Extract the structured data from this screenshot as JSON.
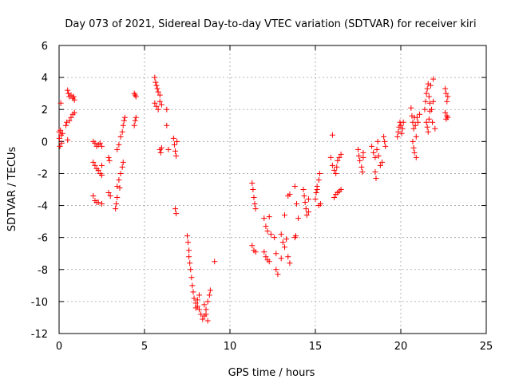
{
  "chart_data": {
    "type": "scatter",
    "title": "Day 073 of 2021, Sidereal Day-to-day VTEC variation (SDTVAR) for receiver kiri",
    "xlabel": "GPS time / hours",
    "ylabel": "SDTVAR / TECUs",
    "xlim": [
      0,
      25
    ],
    "ylim": [
      -12,
      6
    ],
    "x_ticks": [
      0,
      5,
      10,
      15,
      20,
      25
    ],
    "y_ticks": [
      -12,
      -10,
      -8,
      -6,
      -4,
      -2,
      0,
      2,
      4,
      6
    ],
    "grid": true,
    "marker": "plus",
    "colors": {
      "marker": "#ff0000"
    },
    "series": [
      {
        "values": [
          [
            0.0,
            0.6
          ],
          [
            0.02,
            0.2
          ],
          [
            0.05,
            -0.3
          ],
          [
            0.08,
            0.7
          ],
          [
            0.1,
            2.4
          ],
          [
            0.12,
            0.4
          ],
          [
            0.15,
            -0.1
          ],
          [
            0.2,
            0.5
          ],
          [
            0.4,
            1.0
          ],
          [
            0.45,
            1.2
          ],
          [
            0.5,
            0.1
          ],
          [
            0.5,
            3.2
          ],
          [
            0.55,
            3.0
          ],
          [
            0.6,
            2.8
          ],
          [
            0.6,
            1.3
          ],
          [
            0.7,
            1.5
          ],
          [
            0.7,
            2.9
          ],
          [
            0.8,
            1.7
          ],
          [
            0.8,
            2.7
          ],
          [
            0.85,
            2.8
          ],
          [
            0.9,
            1.8
          ],
          [
            0.9,
            2.6
          ],
          [
            2.0,
            0.0
          ],
          [
            2.1,
            -0.1
          ],
          [
            2.2,
            -0.3
          ],
          [
            2.3,
            -0.2
          ],
          [
            2.4,
            -0.1
          ],
          [
            2.5,
            -0.3
          ],
          [
            2.0,
            -1.3
          ],
          [
            2.1,
            -1.5
          ],
          [
            2.2,
            -1.7
          ],
          [
            2.3,
            -1.8
          ],
          [
            2.4,
            -2.0
          ],
          [
            2.5,
            -2.1
          ],
          [
            2.0,
            -3.4
          ],
          [
            2.1,
            -3.7
          ],
          [
            2.2,
            -3.8
          ],
          [
            2.3,
            -3.8
          ],
          [
            2.5,
            -3.9
          ],
          [
            2.5,
            -1.5
          ],
          [
            2.9,
            -1.0
          ],
          [
            2.95,
            -1.2
          ],
          [
            2.9,
            -3.2
          ],
          [
            3.0,
            -3.4
          ],
          [
            3.3,
            -4.2
          ],
          [
            3.35,
            -3.9
          ],
          [
            3.4,
            -3.5
          ],
          [
            3.4,
            -2.8
          ],
          [
            3.5,
            -2.4
          ],
          [
            3.55,
            -2.9
          ],
          [
            3.6,
            -2.0
          ],
          [
            3.7,
            -1.6
          ],
          [
            3.75,
            -1.3
          ],
          [
            3.4,
            -0.5
          ],
          [
            3.5,
            -0.2
          ],
          [
            3.6,
            0.3
          ],
          [
            3.7,
            0.6
          ],
          [
            3.75,
            1.0
          ],
          [
            3.8,
            1.3
          ],
          [
            3.85,
            1.5
          ],
          [
            4.4,
            1.0
          ],
          [
            4.45,
            1.3
          ],
          [
            4.5,
            1.5
          ],
          [
            4.4,
            3.0
          ],
          [
            4.45,
            2.9
          ],
          [
            4.5,
            2.8
          ],
          [
            5.6,
            4.0
          ],
          [
            5.65,
            3.7
          ],
          [
            5.7,
            3.5
          ],
          [
            5.75,
            3.3
          ],
          [
            5.8,
            3.1
          ],
          [
            5.9,
            2.9
          ],
          [
            5.6,
            2.4
          ],
          [
            5.7,
            2.2
          ],
          [
            5.8,
            2.0
          ],
          [
            5.9,
            2.5
          ],
          [
            6.0,
            2.3
          ],
          [
            5.9,
            -0.5
          ],
          [
            5.95,
            -0.7
          ],
          [
            6.0,
            -0.4
          ],
          [
            6.3,
            2.0
          ],
          [
            6.3,
            1.0
          ],
          [
            6.4,
            -0.5
          ],
          [
            6.7,
            0.2
          ],
          [
            6.75,
            -0.2
          ],
          [
            6.8,
            -0.6
          ],
          [
            6.85,
            -0.9
          ],
          [
            6.9,
            0.0
          ],
          [
            6.8,
            -4.2
          ],
          [
            6.85,
            -4.5
          ],
          [
            7.5,
            -5.9
          ],
          [
            7.55,
            -6.3
          ],
          [
            7.6,
            -6.8
          ],
          [
            7.6,
            -7.2
          ],
          [
            7.65,
            -7.6
          ],
          [
            7.7,
            -8.0
          ],
          [
            7.75,
            -8.5
          ],
          [
            7.8,
            -9.0
          ],
          [
            7.85,
            -9.4
          ],
          [
            7.9,
            -9.8
          ],
          [
            8.0,
            -10.1
          ],
          [
            8.1,
            -10.3
          ],
          [
            8.2,
            -10.5
          ],
          [
            8.3,
            -10.8
          ],
          [
            8.4,
            -11.1
          ],
          [
            8.5,
            -10.9
          ],
          [
            8.6,
            -10.5
          ],
          [
            8.7,
            -10.0
          ],
          [
            8.8,
            -9.6
          ],
          [
            8.85,
            -9.3
          ],
          [
            8.5,
            -10.2
          ],
          [
            8.6,
            -10.8
          ],
          [
            8.7,
            -11.2
          ],
          [
            8.0,
            -10.4
          ],
          [
            8.1,
            -9.9
          ],
          [
            8.2,
            -9.6
          ],
          [
            9.1,
            -7.5
          ],
          [
            11.3,
            -2.6
          ],
          [
            11.35,
            -3.0
          ],
          [
            11.4,
            -3.5
          ],
          [
            11.45,
            -3.9
          ],
          [
            11.5,
            -4.2
          ],
          [
            11.3,
            -6.5
          ],
          [
            11.4,
            -6.8
          ],
          [
            11.5,
            -6.9
          ],
          [
            12.0,
            -4.8
          ],
          [
            12.1,
            -5.3
          ],
          [
            12.2,
            -5.6
          ],
          [
            12.3,
            -4.7
          ],
          [
            12.4,
            -5.8
          ],
          [
            12.0,
            -6.9
          ],
          [
            12.1,
            -7.2
          ],
          [
            12.2,
            -7.4
          ],
          [
            12.3,
            -7.5
          ],
          [
            12.6,
            -6.0
          ],
          [
            12.7,
            -7.0
          ],
          [
            12.7,
            -8.0
          ],
          [
            12.8,
            -8.3
          ],
          [
            13.0,
            -5.8
          ],
          [
            13.1,
            -6.3
          ],
          [
            13.2,
            -6.6
          ],
          [
            13.3,
            -6.1
          ],
          [
            13.4,
            -7.2
          ],
          [
            13.5,
            -7.6
          ],
          [
            13.0,
            -7.3
          ],
          [
            13.2,
            -4.6
          ],
          [
            13.4,
            -3.4
          ],
          [
            13.5,
            -3.3
          ],
          [
            13.8,
            -6.0
          ],
          [
            13.85,
            -5.9
          ],
          [
            13.8,
            -2.8
          ],
          [
            13.9,
            -3.9
          ],
          [
            14.0,
            -4.8
          ],
          [
            14.3,
            -3.0
          ],
          [
            14.35,
            -3.4
          ],
          [
            14.4,
            -3.8
          ],
          [
            14.45,
            -4.2
          ],
          [
            14.5,
            -4.6
          ],
          [
            14.6,
            -4.4
          ],
          [
            14.6,
            -3.6
          ],
          [
            15.0,
            -3.6
          ],
          [
            15.05,
            -3.2
          ],
          [
            15.1,
            -2.8
          ],
          [
            15.2,
            -2.4
          ],
          [
            15.25,
            -2.0
          ],
          [
            15.3,
            -3.9
          ],
          [
            15.2,
            -4.0
          ],
          [
            15.1,
            -3.0
          ],
          [
            15.9,
            -1.0
          ],
          [
            16.0,
            -1.5
          ],
          [
            16.1,
            -1.8
          ],
          [
            16.2,
            -2.0
          ],
          [
            16.25,
            -1.6
          ],
          [
            16.3,
            -1.2
          ],
          [
            16.4,
            -1.0
          ],
          [
            16.5,
            -0.8
          ],
          [
            16.1,
            -3.5
          ],
          [
            16.2,
            -3.3
          ],
          [
            16.3,
            -3.2
          ],
          [
            16.4,
            -3.1
          ],
          [
            16.5,
            -3.0
          ],
          [
            16.0,
            0.4
          ],
          [
            17.5,
            -0.5
          ],
          [
            17.55,
            -0.9
          ],
          [
            17.6,
            -1.2
          ],
          [
            17.7,
            -1.6
          ],
          [
            17.75,
            -1.9
          ],
          [
            17.8,
            -1.0
          ],
          [
            17.8,
            -0.7
          ],
          [
            18.3,
            -0.3
          ],
          [
            18.4,
            -0.7
          ],
          [
            18.5,
            -1.0
          ],
          [
            18.5,
            -1.9
          ],
          [
            18.55,
            -2.3
          ],
          [
            18.6,
            -0.5
          ],
          [
            18.65,
            0.0
          ],
          [
            18.7,
            -0.9
          ],
          [
            18.8,
            -1.5
          ],
          [
            18.9,
            -1.3
          ],
          [
            19.0,
            0.3
          ],
          [
            19.05,
            0.0
          ],
          [
            19.1,
            -0.3
          ],
          [
            19.8,
            0.3
          ],
          [
            19.85,
            0.6
          ],
          [
            19.9,
            0.9
          ],
          [
            19.95,
            1.2
          ],
          [
            20.0,
            1.0
          ],
          [
            20.05,
            0.5
          ],
          [
            20.1,
            0.8
          ],
          [
            20.15,
            1.2
          ],
          [
            20.6,
            2.1
          ],
          [
            20.65,
            1.6
          ],
          [
            20.7,
            1.2
          ],
          [
            20.75,
            0.8
          ],
          [
            20.8,
            1.5
          ],
          [
            20.85,
            1.0
          ],
          [
            20.9,
            0.3
          ],
          [
            20.95,
            1.5
          ],
          [
            20.7,
            0.0
          ],
          [
            20.75,
            -0.4
          ],
          [
            20.8,
            -0.7
          ],
          [
            20.9,
            -1.0
          ],
          [
            21.0,
            1.2
          ],
          [
            21.1,
            1.7
          ],
          [
            21.4,
            2.0
          ],
          [
            21.45,
            2.5
          ],
          [
            21.5,
            3.0
          ],
          [
            21.55,
            3.3
          ],
          [
            21.6,
            3.6
          ],
          [
            21.65,
            2.8
          ],
          [
            21.7,
            2.4
          ],
          [
            21.75,
            3.5
          ],
          [
            21.5,
            1.2
          ],
          [
            21.55,
            0.9
          ],
          [
            21.6,
            0.6
          ],
          [
            21.65,
            1.4
          ],
          [
            21.7,
            1.9
          ],
          [
            21.8,
            2.0
          ],
          [
            21.85,
            1.2
          ],
          [
            21.9,
            3.9
          ],
          [
            21.9,
            2.5
          ],
          [
            22.0,
            0.8
          ],
          [
            22.6,
            3.3
          ],
          [
            22.65,
            3.0
          ],
          [
            22.7,
            2.5
          ],
          [
            22.75,
            2.8
          ],
          [
            22.6,
            1.8
          ],
          [
            22.65,
            1.4
          ],
          [
            22.7,
            1.6
          ],
          [
            22.75,
            1.5
          ]
        ]
      }
    ]
  }
}
